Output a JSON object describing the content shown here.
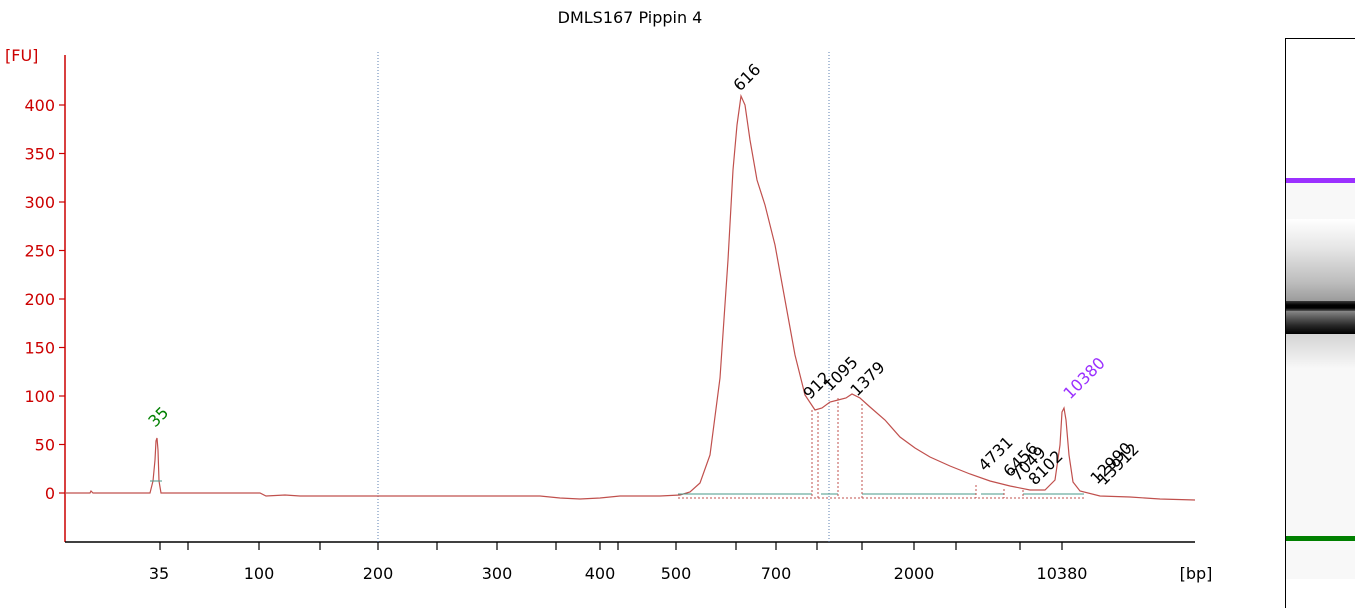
{
  "chart_data": {
    "type": "line",
    "title": "DMLS167 Pippin 4",
    "ylabel": "[FU]",
    "xlabel": "[bp]",
    "ylim": [
      -55,
      430
    ],
    "y_ticks": [
      0,
      50,
      100,
      150,
      200,
      250,
      300,
      350,
      400
    ],
    "x_tick_labels": [
      "35",
      "100",
      "200",
      "300",
      "400",
      "500",
      "700",
      "2000",
      "10380"
    ],
    "axis_color": "#cc0000",
    "trace_color": "#c0504d",
    "grid": false,
    "peaks": [
      {
        "label": "35",
        "size_bp": 35,
        "fu": 56,
        "color": "#008000"
      },
      {
        "label": "616",
        "size_bp": 616,
        "fu": 408,
        "color": "#000000"
      },
      {
        "label": "912",
        "size_bp": 912,
        "fu": 85,
        "color": "#000000"
      },
      {
        "label": "1095",
        "size_bp": 1095,
        "fu": 95,
        "color": "#000000"
      },
      {
        "label": "1379",
        "size_bp": 1379,
        "fu": 100,
        "color": "#000000"
      },
      {
        "label": "4731",
        "size_bp": 4731,
        "fu": 8,
        "color": "#000000"
      },
      {
        "label": "6456",
        "size_bp": 6456,
        "fu": 5,
        "color": "#000000"
      },
      {
        "label": "7049",
        "size_bp": 7049,
        "fu": 4,
        "color": "#000000"
      },
      {
        "label": "8102",
        "size_bp": 8102,
        "fu": 3,
        "color": "#000000"
      },
      {
        "label": "10380",
        "size_bp": 10380,
        "fu": 87,
        "color": "#9b30ff"
      },
      {
        "label": "12990",
        "size_bp": 12990,
        "fu": 1,
        "color": "#000000"
      },
      {
        "label": "13912",
        "size_bp": 13912,
        "fu": 0,
        "color": "#000000"
      }
    ]
  }
}
